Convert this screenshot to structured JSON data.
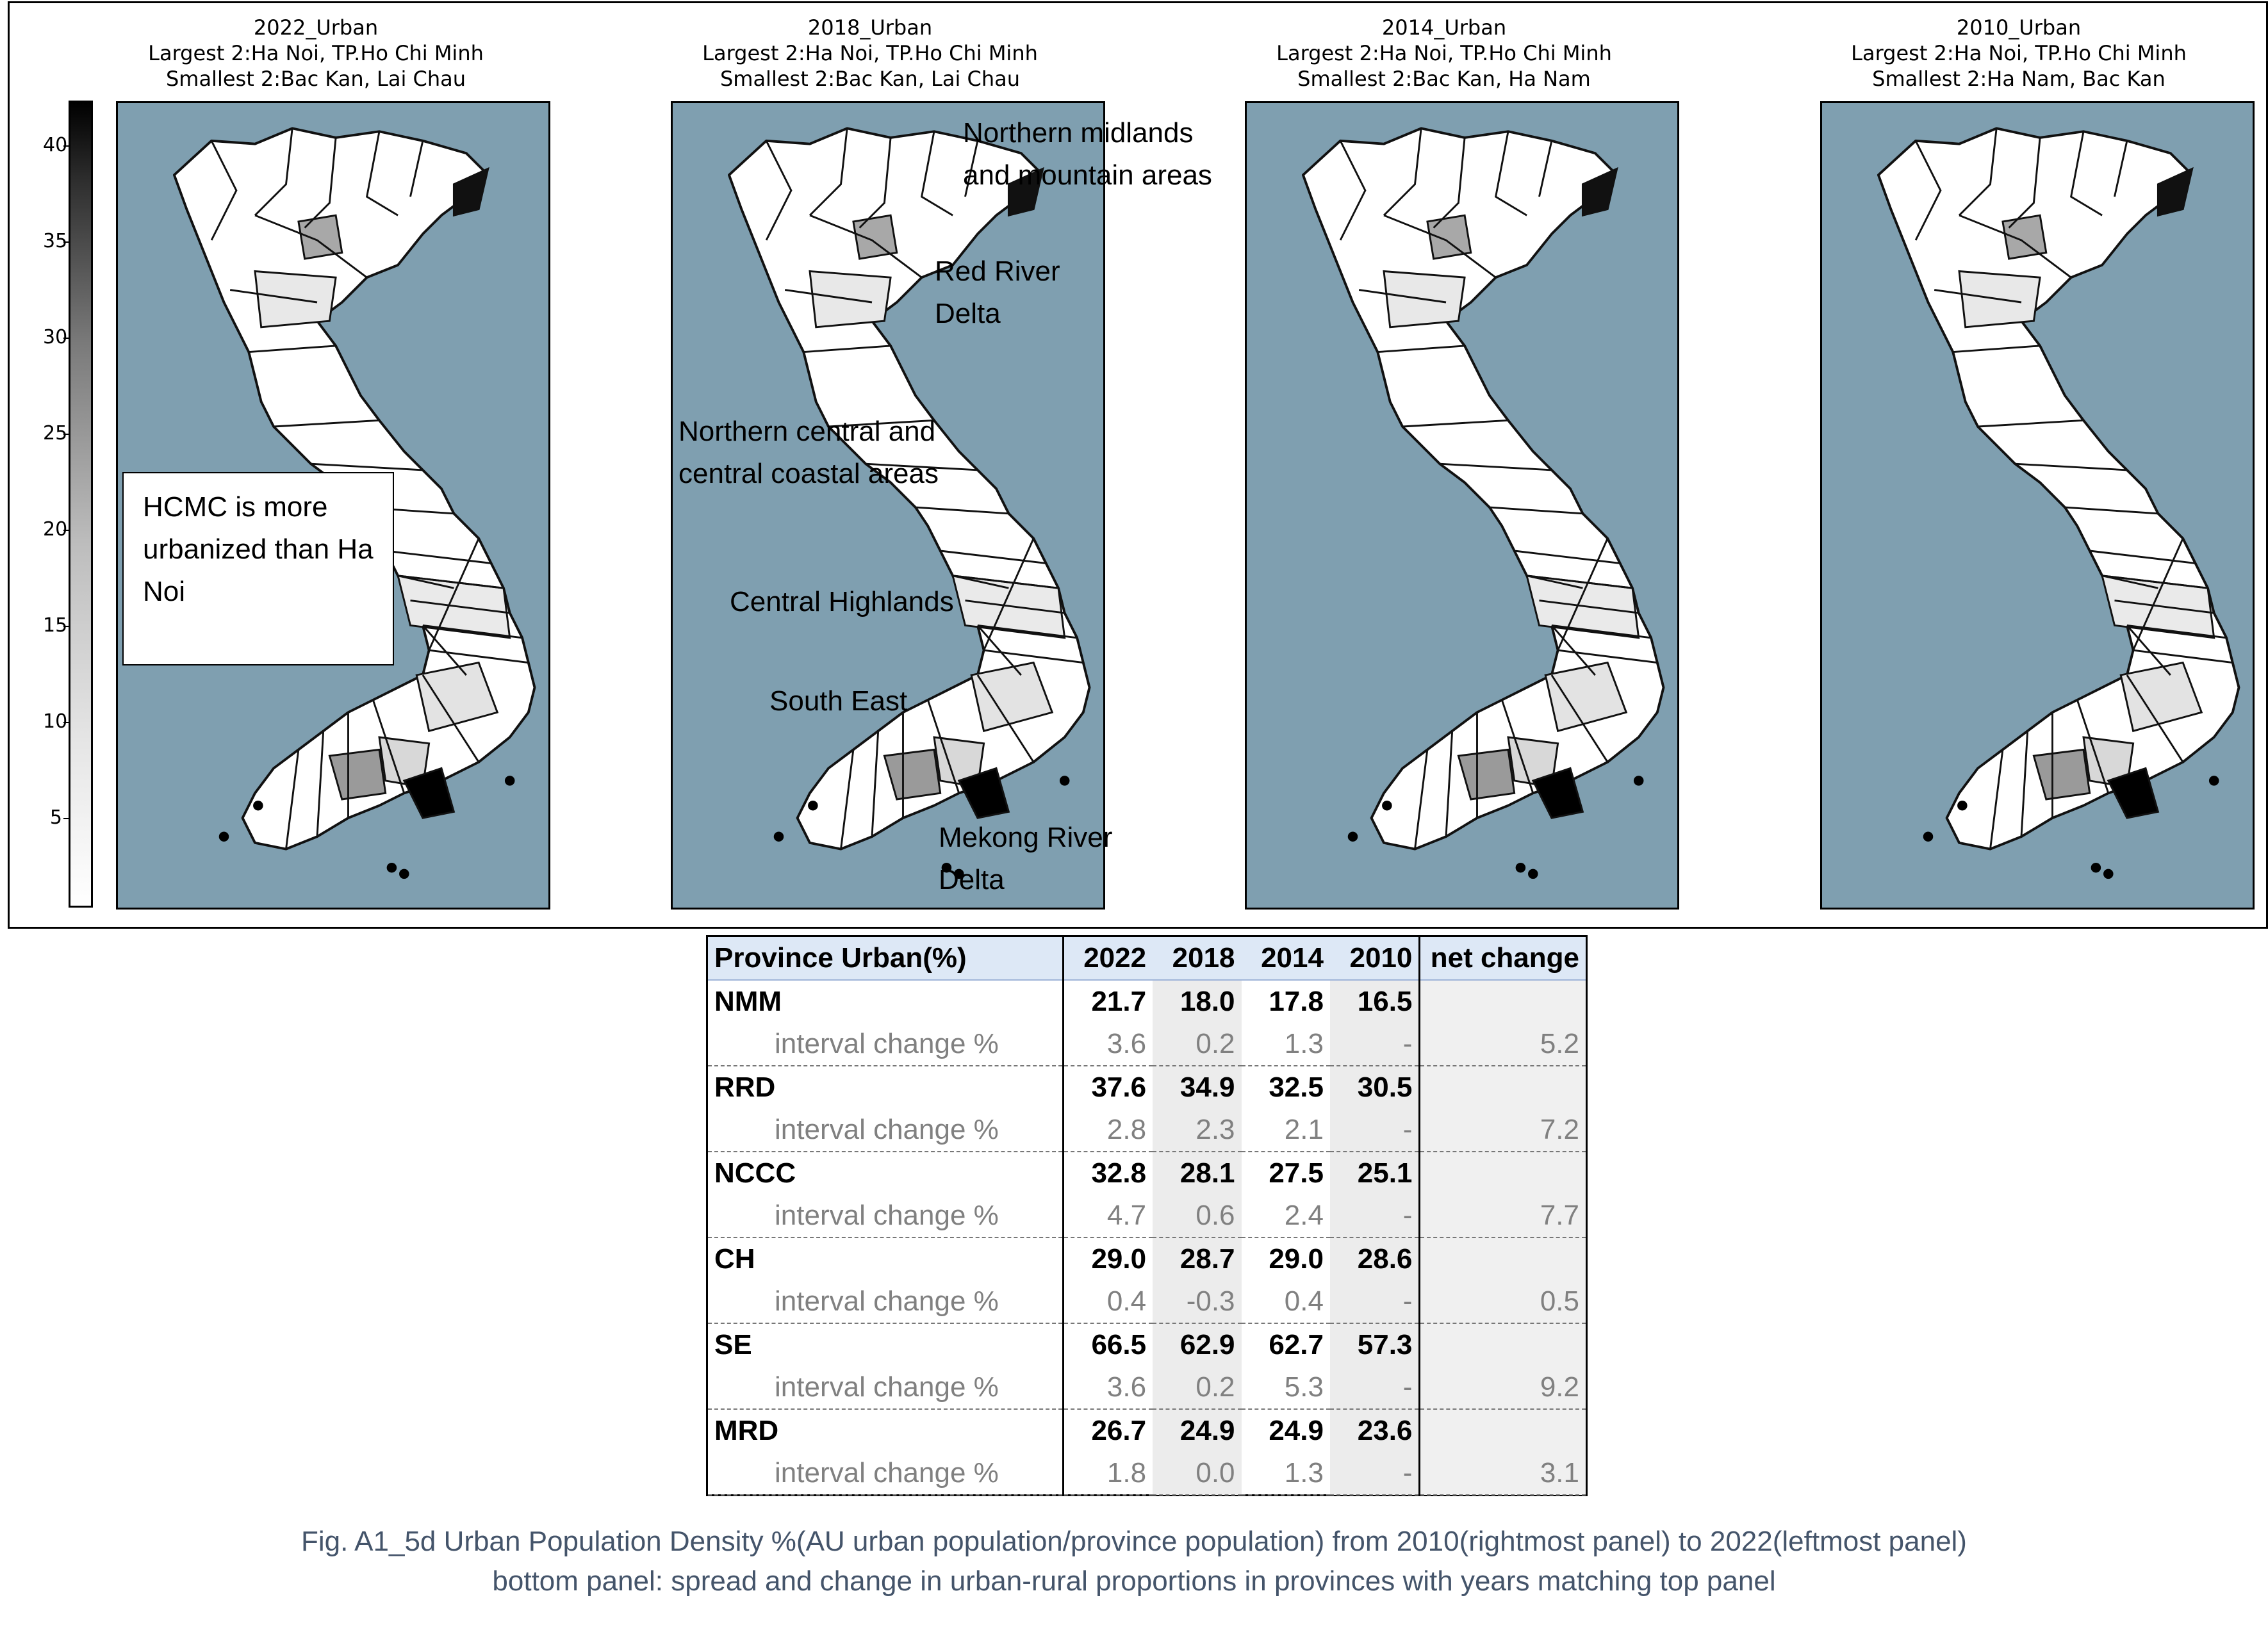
{
  "chart_data": [
    {
      "type": "heatmap",
      "title": "2022_Urban",
      "subtitle": [
        "Largest 2:Ha Noi, TP.Ho Chi Minh",
        "Smallest 2:Bac Kan, Lai Chau"
      ]
    },
    {
      "type": "heatmap",
      "title": "2018_Urban",
      "subtitle": [
        "Largest 2:Ha Noi, TP.Ho Chi Minh",
        "Smallest 2:Bac Kan, Lai Chau"
      ]
    },
    {
      "type": "heatmap",
      "title": "2014_Urban",
      "subtitle": [
        "Largest 2:Ha Noi, TP.Ho Chi Minh",
        "Smallest 2:Bac Kan, Ha Nam"
      ]
    },
    {
      "type": "heatmap",
      "title": "2010_Urban",
      "subtitle": [
        "Largest 2:Ha Noi, TP.Ho Chi Minh",
        "Smallest 2:Ha Nam, Bac Kan"
      ]
    },
    {
      "type": "table",
      "columns": [
        "Province Urban(%)",
        "2022",
        "2018",
        "2014",
        "2010",
        "net change"
      ],
      "rows": [
        {
          "region": "NMM",
          "values": [
            "21.7",
            "18.0",
            "17.8",
            "16.5"
          ],
          "change_label": "interval change %",
          "changes": [
            "3.6",
            "0.2",
            "1.3",
            "-"
          ],
          "net": "5.2"
        },
        {
          "region": "RRD",
          "values": [
            "37.6",
            "34.9",
            "32.5",
            "30.5"
          ],
          "change_label": "interval change %",
          "changes": [
            "2.8",
            "2.3",
            "2.1",
            "-"
          ],
          "net": "7.2"
        },
        {
          "region": "NCCC",
          "values": [
            "32.8",
            "28.1",
            "27.5",
            "25.1"
          ],
          "change_label": "interval change %",
          "changes": [
            "4.7",
            "0.6",
            "2.4",
            "-"
          ],
          "net": "7.7"
        },
        {
          "region": "CH",
          "values": [
            "29.0",
            "28.7",
            "29.0",
            "28.6"
          ],
          "change_label": "interval change %",
          "changes": [
            "0.4",
            "-0.3",
            "0.4",
            "-"
          ],
          "net": "0.5"
        },
        {
          "region": "SE",
          "values": [
            "66.5",
            "62.9",
            "62.7",
            "57.3"
          ],
          "change_label": "interval change %",
          "changes": [
            "3.6",
            "0.2",
            "5.3",
            "-"
          ],
          "net": "9.2"
        },
        {
          "region": "MRD",
          "values": [
            "26.7",
            "24.9",
            "24.9",
            "23.6"
          ],
          "change_label": "interval change %",
          "changes": [
            "1.8",
            "0.0",
            "1.3",
            "-"
          ],
          "net": "3.1"
        }
      ]
    }
  ],
  "colorbar": {
    "ticks": [
      "40",
      "35",
      "30",
      "25",
      "20",
      "15",
      "10",
      "5"
    ],
    "gradient": [
      "#000000",
      "#ffffff"
    ]
  },
  "note": "HCMC is more urbanized than Ha Noi",
  "region_labels": {
    "nmm": "Northern midlands and mountain areas",
    "rrd": "Red River Delta",
    "nccc": "Northern central and central coastal areas",
    "ch": "Central Highlands",
    "se": "South East",
    "mrd": "Mekong River Delta"
  },
  "caption": {
    "line1": "Fig. A1_5d Urban Population Density %(AU urban population/province population) from 2010(rightmost panel) to 2022(leftmost panel)",
    "line2": "bottom panel: spread and change in urban-rural proportions in provinces with years matching top panel"
  },
  "colors": {
    "sea": "#7f9fb0",
    "province": "#ffffff",
    "border": "#111111",
    "caption": "#44546a",
    "table_header": "#dde8f6"
  }
}
